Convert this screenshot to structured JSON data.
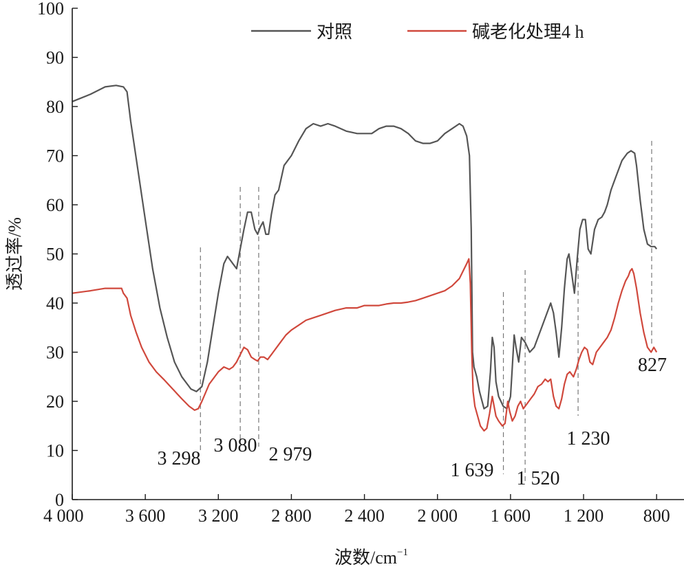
{
  "chart_data": {
    "type": "line",
    "title": "",
    "xlabel": "波数/cm",
    "xlabel_sup": "−1",
    "ylabel": "透过率/%",
    "xlim": [
      4000,
      650
    ],
    "ylim": [
      0,
      100
    ],
    "x_reversed": true,
    "xticks": [
      4000,
      3600,
      3200,
      2800,
      2400,
      2000,
      1600,
      1200,
      800
    ],
    "xtick_labels": [
      "4 000",
      "3 600",
      "3 200",
      "2 800",
      "2 400",
      "2 000",
      "1 600",
      "1 200",
      "800"
    ],
    "yticks": [
      0,
      10,
      20,
      30,
      40,
      50,
      60,
      70,
      80,
      90,
      100
    ],
    "ytick_labels": [
      "0",
      "10",
      "20",
      "30",
      "40",
      "50",
      "60",
      "70",
      "80",
      "90",
      "100"
    ],
    "legend_position": "top",
    "series": [
      {
        "name": "对照",
        "color": "#555555",
        "points": [
          [
            4000,
            81
          ],
          [
            3900,
            82.5
          ],
          [
            3820,
            84
          ],
          [
            3760,
            84.3
          ],
          [
            3720,
            84
          ],
          [
            3700,
            83
          ],
          [
            3680,
            77
          ],
          [
            3640,
            67
          ],
          [
            3600,
            57
          ],
          [
            3560,
            47
          ],
          [
            3520,
            39
          ],
          [
            3480,
            33
          ],
          [
            3440,
            28
          ],
          [
            3400,
            25
          ],
          [
            3350,
            22.5
          ],
          [
            3320,
            22
          ],
          [
            3290,
            23
          ],
          [
            3260,
            28
          ],
          [
            3230,
            35
          ],
          [
            3200,
            42
          ],
          [
            3170,
            48
          ],
          [
            3150,
            49.5
          ],
          [
            3120,
            48
          ],
          [
            3100,
            47
          ],
          [
            3080,
            51
          ],
          [
            3060,
            55
          ],
          [
            3040,
            58.5
          ],
          [
            3020,
            58.5
          ],
          [
            3000,
            55
          ],
          [
            2985,
            54
          ],
          [
            2970,
            55.5
          ],
          [
            2955,
            56.5
          ],
          [
            2940,
            54
          ],
          [
            2925,
            54
          ],
          [
            2910,
            58
          ],
          [
            2890,
            62
          ],
          [
            2870,
            63
          ],
          [
            2840,
            68
          ],
          [
            2800,
            70
          ],
          [
            2760,
            73
          ],
          [
            2720,
            75.5
          ],
          [
            2680,
            76.5
          ],
          [
            2640,
            76
          ],
          [
            2600,
            76.5
          ],
          [
            2560,
            76
          ],
          [
            2500,
            75
          ],
          [
            2440,
            74.5
          ],
          [
            2400,
            74.5
          ],
          [
            2360,
            74.5
          ],
          [
            2320,
            75.5
          ],
          [
            2280,
            76
          ],
          [
            2240,
            76
          ],
          [
            2200,
            75.5
          ],
          [
            2160,
            74.5
          ],
          [
            2120,
            73
          ],
          [
            2080,
            72.5
          ],
          [
            2040,
            72.5
          ],
          [
            2000,
            73
          ],
          [
            1960,
            74.5
          ],
          [
            1920,
            75.5
          ],
          [
            1880,
            76.5
          ],
          [
            1860,
            76
          ],
          [
            1840,
            74
          ],
          [
            1825,
            70
          ],
          [
            1815,
            55
          ],
          [
            1808,
            30
          ],
          [
            1800,
            27
          ],
          [
            1785,
            25
          ],
          [
            1770,
            22
          ],
          [
            1745,
            18.5
          ],
          [
            1725,
            19
          ],
          [
            1710,
            26
          ],
          [
            1700,
            33
          ],
          [
            1690,
            31
          ],
          [
            1680,
            24
          ],
          [
            1665,
            21
          ],
          [
            1640,
            19
          ],
          [
            1620,
            18.5
          ],
          [
            1600,
            21
          ],
          [
            1590,
            27
          ],
          [
            1580,
            33.5
          ],
          [
            1570,
            31
          ],
          [
            1555,
            28
          ],
          [
            1540,
            33
          ],
          [
            1520,
            32
          ],
          [
            1495,
            30
          ],
          [
            1470,
            31
          ],
          [
            1440,
            34
          ],
          [
            1420,
            36
          ],
          [
            1400,
            38
          ],
          [
            1380,
            40
          ],
          [
            1365,
            38
          ],
          [
            1350,
            34
          ],
          [
            1335,
            29
          ],
          [
            1320,
            35
          ],
          [
            1305,
            43
          ],
          [
            1290,
            49
          ],
          [
            1280,
            50
          ],
          [
            1265,
            46
          ],
          [
            1250,
            42
          ],
          [
            1235,
            49
          ],
          [
            1220,
            55
          ],
          [
            1205,
            57
          ],
          [
            1190,
            57
          ],
          [
            1175,
            51
          ],
          [
            1160,
            50
          ],
          [
            1140,
            55
          ],
          [
            1120,
            57
          ],
          [
            1100,
            57.5
          ],
          [
            1085,
            58.5
          ],
          [
            1070,
            60
          ],
          [
            1050,
            63
          ],
          [
            1020,
            66
          ],
          [
            990,
            69
          ],
          [
            960,
            70.5
          ],
          [
            940,
            71
          ],
          [
            920,
            70.5
          ],
          [
            910,
            68
          ],
          [
            890,
            61
          ],
          [
            870,
            55
          ],
          [
            850,
            52
          ],
          [
            830,
            51.5
          ],
          [
            810,
            51.5
          ],
          [
            800,
            51
          ]
        ]
      },
      {
        "name": "碱老化处理4 h",
        "color": "#d0483c",
        "points": [
          [
            4000,
            42
          ],
          [
            3900,
            42.5
          ],
          [
            3820,
            43
          ],
          [
            3760,
            43
          ],
          [
            3730,
            43
          ],
          [
            3720,
            42
          ],
          [
            3700,
            41
          ],
          [
            3680,
            37.5
          ],
          [
            3650,
            34
          ],
          [
            3620,
            31
          ],
          [
            3580,
            28
          ],
          [
            3540,
            26
          ],
          [
            3500,
            24.5
          ],
          [
            3450,
            22.5
          ],
          [
            3400,
            20.5
          ],
          [
            3360,
            19
          ],
          [
            3330,
            18.2
          ],
          [
            3310,
            18.5
          ],
          [
            3290,
            20
          ],
          [
            3250,
            23.5
          ],
          [
            3200,
            26
          ],
          [
            3170,
            27
          ],
          [
            3140,
            26.5
          ],
          [
            3120,
            27
          ],
          [
            3100,
            28
          ],
          [
            3080,
            29.5
          ],
          [
            3060,
            31
          ],
          [
            3040,
            30.5
          ],
          [
            3020,
            29
          ],
          [
            3000,
            28.5
          ],
          [
            2985,
            28.2
          ],
          [
            2970,
            29
          ],
          [
            2950,
            29
          ],
          [
            2930,
            28.5
          ],
          [
            2910,
            29.5
          ],
          [
            2890,
            30.5
          ],
          [
            2860,
            32
          ],
          [
            2830,
            33.5
          ],
          [
            2800,
            34.5
          ],
          [
            2760,
            35.5
          ],
          [
            2720,
            36.5
          ],
          [
            2680,
            37
          ],
          [
            2640,
            37.5
          ],
          [
            2600,
            38
          ],
          [
            2560,
            38.5
          ],
          [
            2500,
            39
          ],
          [
            2440,
            39
          ],
          [
            2400,
            39.5
          ],
          [
            2360,
            39.5
          ],
          [
            2320,
            39.5
          ],
          [
            2280,
            39.8
          ],
          [
            2240,
            40
          ],
          [
            2200,
            40
          ],
          [
            2160,
            40.2
          ],
          [
            2120,
            40.5
          ],
          [
            2080,
            41
          ],
          [
            2040,
            41.5
          ],
          [
            2000,
            42
          ],
          [
            1960,
            42.5
          ],
          [
            1920,
            43.5
          ],
          [
            1880,
            45
          ],
          [
            1860,
            46.5
          ],
          [
            1840,
            48
          ],
          [
            1828,
            49
          ],
          [
            1820,
            44
          ],
          [
            1812,
            30
          ],
          [
            1805,
            22
          ],
          [
            1795,
            19
          ],
          [
            1780,
            17
          ],
          [
            1765,
            15
          ],
          [
            1745,
            14
          ],
          [
            1730,
            14.5
          ],
          [
            1715,
            17.5
          ],
          [
            1700,
            21
          ],
          [
            1690,
            19
          ],
          [
            1680,
            17
          ],
          [
            1665,
            16
          ],
          [
            1645,
            15
          ],
          [
            1630,
            15.5
          ],
          [
            1615,
            20
          ],
          [
            1605,
            18
          ],
          [
            1590,
            16
          ],
          [
            1575,
            17
          ],
          [
            1560,
            19
          ],
          [
            1545,
            20
          ],
          [
            1530,
            18.5
          ],
          [
            1510,
            19.5
          ],
          [
            1490,
            20.5
          ],
          [
            1470,
            21.5
          ],
          [
            1450,
            23
          ],
          [
            1430,
            23.5
          ],
          [
            1410,
            24.5
          ],
          [
            1395,
            24
          ],
          [
            1380,
            24.5
          ],
          [
            1365,
            21
          ],
          [
            1350,
            19
          ],
          [
            1335,
            18.5
          ],
          [
            1320,
            20.5
          ],
          [
            1305,
            23.5
          ],
          [
            1290,
            25.5
          ],
          [
            1275,
            26
          ],
          [
            1255,
            25
          ],
          [
            1240,
            26.5
          ],
          [
            1225,
            28.5
          ],
          [
            1210,
            30
          ],
          [
            1195,
            31
          ],
          [
            1180,
            30.5
          ],
          [
            1165,
            28
          ],
          [
            1150,
            27.5
          ],
          [
            1130,
            30
          ],
          [
            1110,
            31
          ],
          [
            1090,
            32
          ],
          [
            1070,
            33
          ],
          [
            1050,
            34.5
          ],
          [
            1030,
            37
          ],
          [
            1010,
            40
          ],
          [
            990,
            42.5
          ],
          [
            970,
            44.5
          ],
          [
            955,
            45.5
          ],
          [
            945,
            46.5
          ],
          [
            935,
            47
          ],
          [
            925,
            46
          ],
          [
            910,
            43
          ],
          [
            890,
            38
          ],
          [
            870,
            34
          ],
          [
            850,
            31
          ],
          [
            830,
            30
          ],
          [
            815,
            31
          ],
          [
            800,
            30
          ]
        ]
      }
    ],
    "markers": [
      {
        "x": 3298,
        "label": "3 298"
      },
      {
        "x": 3080,
        "label": "3 080"
      },
      {
        "x": 2979,
        "label": "2 979"
      },
      {
        "x": 1639,
        "label": "1 639"
      },
      {
        "x": 1520,
        "label": "1 520"
      },
      {
        "x": 1230,
        "label": "1 230"
      },
      {
        "x": 827,
        "label": "827"
      }
    ]
  }
}
